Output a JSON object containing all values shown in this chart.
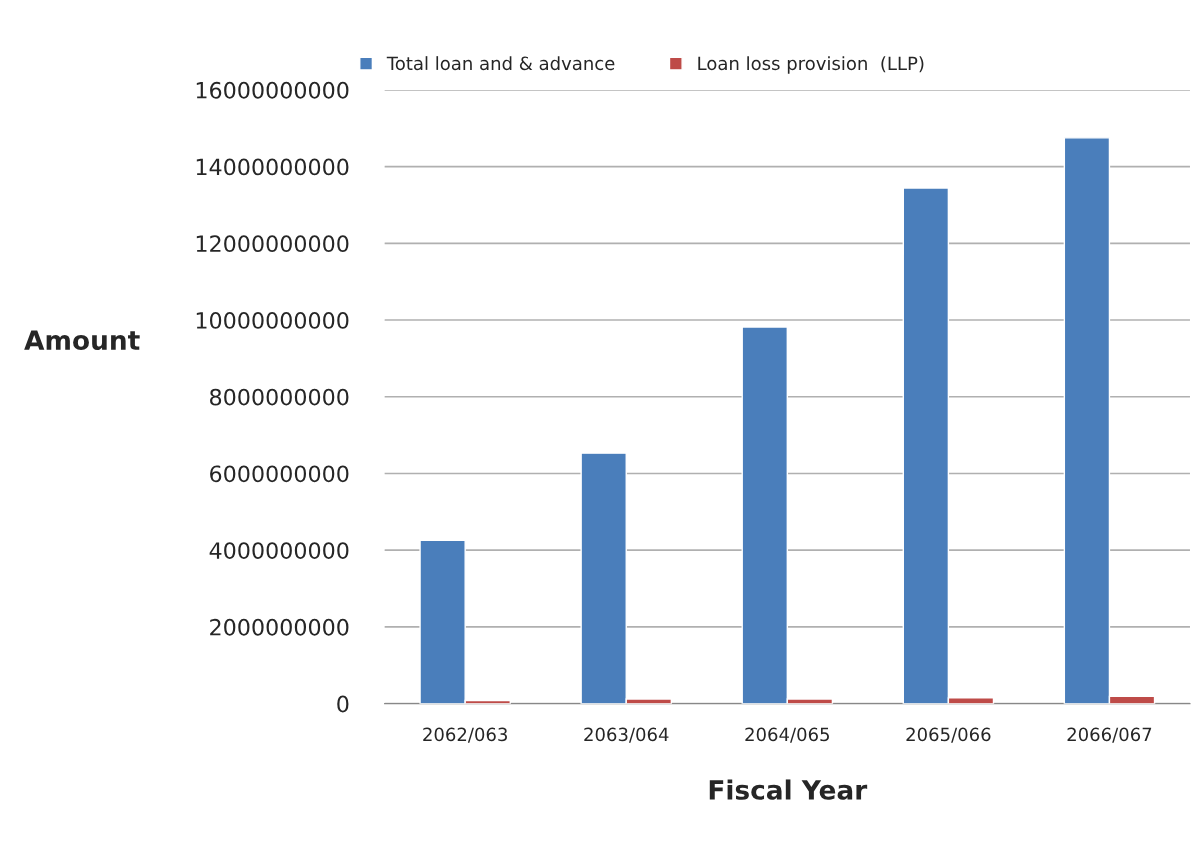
{
  "chart_data": {
    "type": "bar",
    "xlabel": "Fiscal Year",
    "ylabel": "Amount",
    "categories": [
      "2062/063",
      "2063/064",
      "2064/065",
      "2065/066",
      "2066/067"
    ],
    "series": [
      {
        "name": "Total loan and & advance",
        "color": "#4a7ebb",
        "values": [
          4260000000,
          6530000000,
          9820000000,
          13440000000,
          14750000000
        ]
      },
      {
        "name": "Loan loss provision  (LLP)",
        "color": "#be4b48",
        "values": [
          80000000,
          120000000,
          120000000,
          150000000,
          190000000
        ]
      }
    ],
    "ylim": [
      0,
      16000000000
    ],
    "yticks": [
      0,
      2000000000,
      4000000000,
      6000000000,
      8000000000,
      10000000000,
      12000000000,
      14000000000,
      16000000000
    ],
    "grid": "y",
    "legend": "top"
  }
}
